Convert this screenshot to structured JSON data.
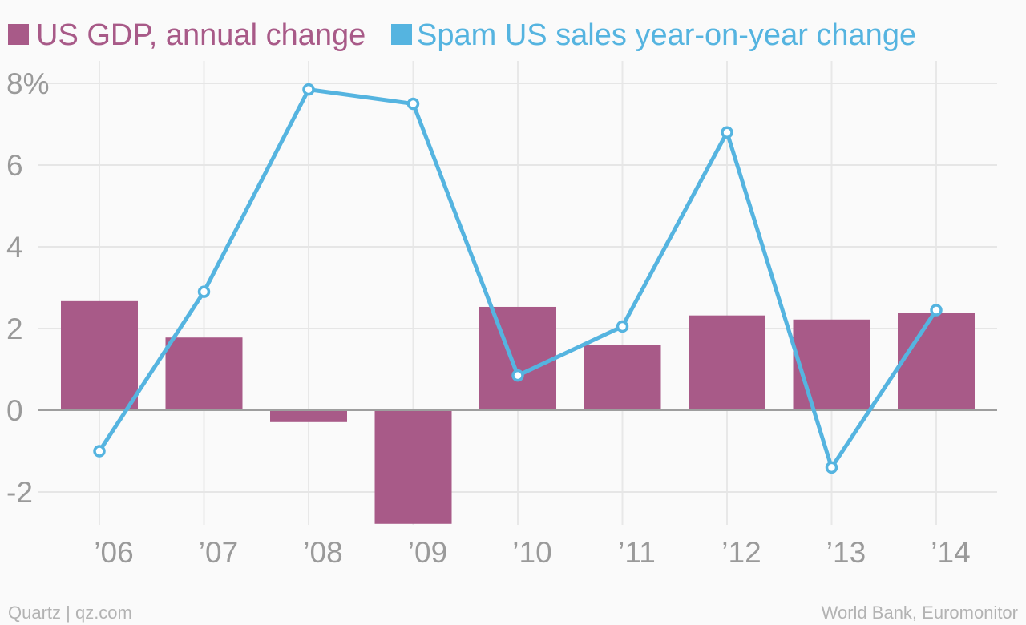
{
  "chart_data": {
    "type": "bar+line",
    "categories": [
      "’06",
      "’07",
      "’08",
      "’09",
      "’10",
      "’11",
      "’12",
      "’13",
      "’14"
    ],
    "series": [
      {
        "name": "US GDP, annual change",
        "type": "bar",
        "color": "#a85a88",
        "values": [
          2.67,
          1.78,
          -0.29,
          -2.78,
          2.53,
          1.6,
          2.32,
          2.22,
          2.39
        ]
      },
      {
        "name": "Spam US sales year-on-year change",
        "type": "line",
        "color": "#55b4e0",
        "values": [
          -1.0,
          2.9,
          7.85,
          7.5,
          0.85,
          2.05,
          6.8,
          -1.4,
          2.45
        ]
      }
    ],
    "y_ticks": [
      {
        "value": 8,
        "label": "8%"
      },
      {
        "value": 6,
        "label": "6"
      },
      {
        "value": 4,
        "label": "4"
      },
      {
        "value": 2,
        "label": "2"
      },
      {
        "value": 0,
        "label": "0"
      },
      {
        "value": -2,
        "label": "-2"
      }
    ],
    "ylim": [
      -2.8,
      8.4
    ],
    "grid": true,
    "legend_position": "top-left"
  },
  "footer": {
    "left": "Quartz | qz.com",
    "right": "World Bank, Euromonitor"
  }
}
